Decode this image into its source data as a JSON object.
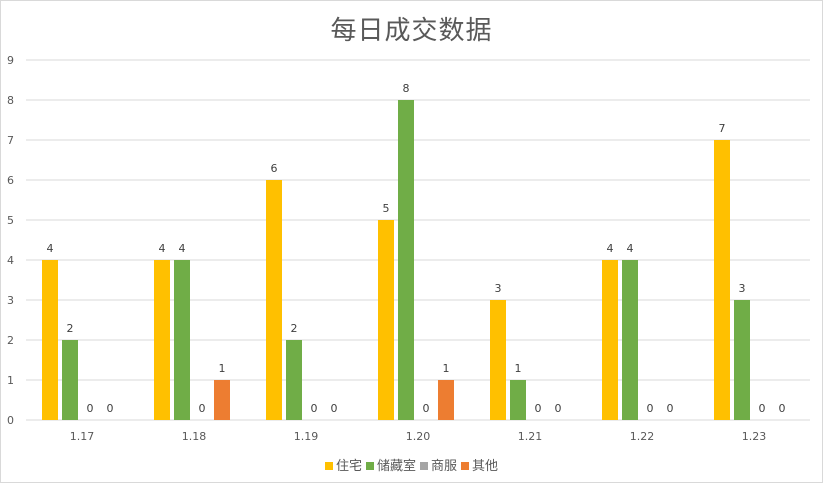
{
  "chart_data": {
    "type": "bar",
    "title": "每日成交数据",
    "xlabel": "",
    "ylabel": "",
    "ylim": [
      0,
      9
    ],
    "yticks": [
      0,
      1,
      2,
      3,
      4,
      5,
      6,
      7,
      8,
      9
    ],
    "grid": true,
    "legend_position": "bottom",
    "categories": [
      "1.17",
      "1.18",
      "1.19",
      "1.20",
      "1.21",
      "1.22",
      "1.23"
    ],
    "series": [
      {
        "name": "住宅",
        "color": "#FFC000",
        "values": [
          4,
          4,
          6,
          5,
          3,
          4,
          7
        ]
      },
      {
        "name": "储藏室",
        "color": "#70AD47",
        "values": [
          2,
          4,
          2,
          8,
          1,
          4,
          3
        ]
      },
      {
        "name": "商服",
        "color": "#A5A5A5",
        "values": [
          0,
          0,
          0,
          0,
          0,
          0,
          0
        ]
      },
      {
        "name": "其他",
        "color": "#ED7D31",
        "values": [
          0,
          1,
          0,
          1,
          0,
          0,
          0
        ]
      }
    ]
  }
}
